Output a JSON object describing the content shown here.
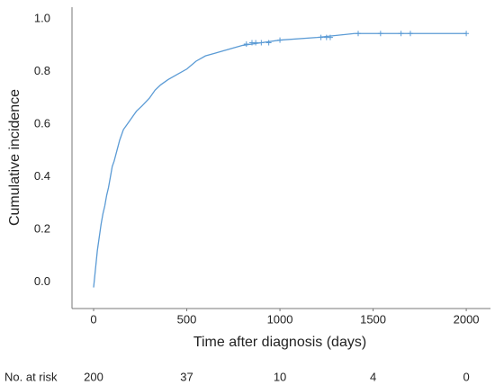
{
  "chart_data": {
    "type": "line",
    "x_label": "Time after diagnosis (days)",
    "y_label": "Cumulative incidence",
    "x": [
      0,
      10,
      20,
      30,
      40,
      50,
      60,
      70,
      80,
      90,
      100,
      110,
      125,
      140,
      160,
      180,
      200,
      230,
      260,
      300,
      330,
      360,
      400,
      450,
      500,
      550,
      600,
      650,
      700,
      800,
      900,
      1000,
      1200,
      1400,
      2000
    ],
    "series": [
      {
        "color": "#5b9bd5",
        "values": [
          -0.02,
          0.05,
          0.12,
          0.17,
          0.22,
          0.26,
          0.29,
          0.33,
          0.36,
          0.4,
          0.44,
          0.46,
          0.5,
          0.54,
          0.58,
          0.6,
          0.62,
          0.65,
          0.67,
          0.7,
          0.73,
          0.75,
          0.77,
          0.79,
          0.81,
          0.84,
          0.86,
          0.87,
          0.88,
          0.9,
          0.91,
          0.92,
          0.93,
          0.945,
          0.945
        ]
      }
    ],
    "censored": {
      "color": "#5b9bd5",
      "x": [
        820,
        850,
        870,
        900,
        940,
        1000,
        1220,
        1250,
        1270,
        1420,
        1540,
        1650,
        1700,
        2000
      ],
      "values": [
        0.905,
        0.91,
        0.91,
        0.91,
        0.91,
        0.92,
        0.93,
        0.93,
        0.93,
        0.945,
        0.945,
        0.945,
        0.945,
        0.945
      ]
    },
    "xlim": [
      -116,
      2130
    ],
    "ylim": [
      -0.1,
      1.045
    ],
    "xticks": [
      0,
      500,
      1000,
      1500,
      2000
    ],
    "yticks": [
      {
        "value": 0,
        "label": "0.0"
      },
      0.2,
      0.4,
      0.6,
      0.8,
      {
        "value": 1,
        "label": "1.0"
      }
    ],
    "grid": false,
    "risk_table": {
      "label": "No. at risk",
      "counts": [
        200,
        37,
        10,
        4,
        0
      ]
    }
  }
}
